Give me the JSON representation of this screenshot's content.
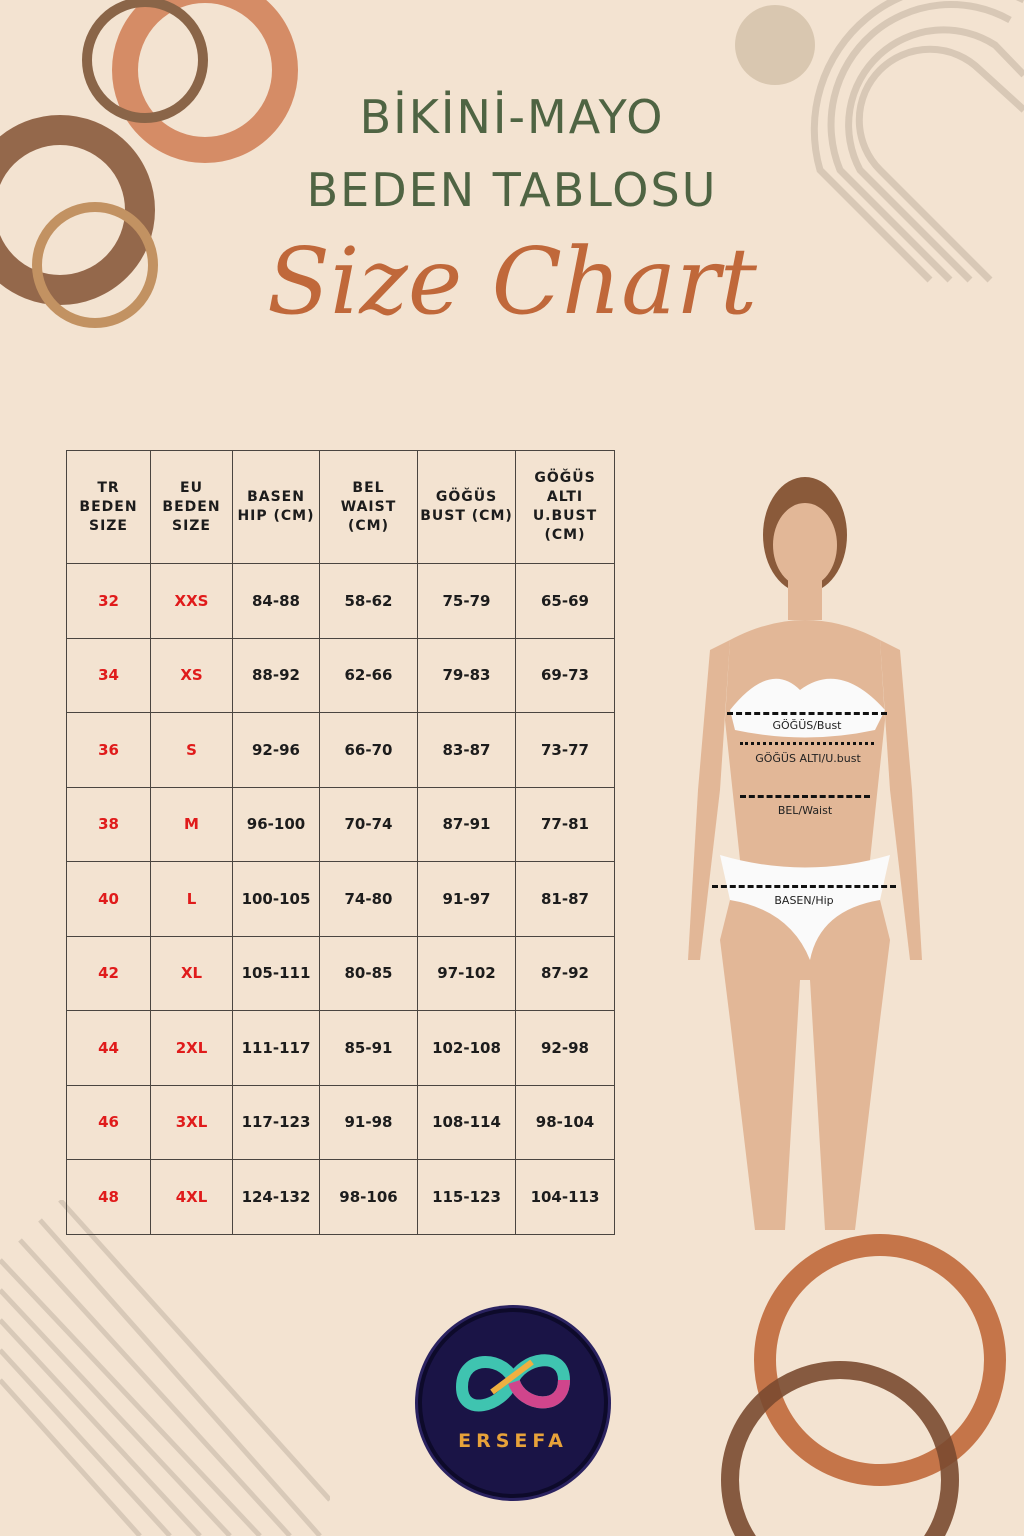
{
  "header": {
    "title_line1": "BİKİNİ-MAYO",
    "title_line2": "BEDEN TABLOSU",
    "script_title": "Size Chart"
  },
  "table": {
    "columns": [
      "TR BEDEN SIZE",
      "EU BEDEN SIZE",
      "BASEN HIP (CM)",
      "BEL WAIST (CM)",
      "GÖĞÜS BUST (CM)",
      "GÖĞÜS ALTI U.BUST (CM)"
    ],
    "rows": [
      [
        "32",
        "XXS",
        "84-88",
        "58-62",
        "75-79",
        "65-69"
      ],
      [
        "34",
        "XS",
        "88-92",
        "62-66",
        "79-83",
        "69-73"
      ],
      [
        "36",
        "S",
        "92-96",
        "66-70",
        "83-87",
        "73-77"
      ],
      [
        "38",
        "M",
        "96-100",
        "70-74",
        "87-91",
        "77-81"
      ],
      [
        "40",
        "L",
        "100-105",
        "74-80",
        "91-97",
        "81-87"
      ],
      [
        "42",
        "XL",
        "105-111",
        "80-85",
        "97-102",
        "87-92"
      ],
      [
        "44",
        "2XL",
        "111-117",
        "85-91",
        "102-108",
        "92-98"
      ],
      [
        "46",
        "3XL",
        "117-123",
        "91-98",
        "108-114",
        "98-104"
      ],
      [
        "48",
        "4XL",
        "124-132",
        "98-106",
        "115-123",
        "104-113"
      ]
    ]
  },
  "measurements": {
    "bust": "GÖĞÜS/Bust",
    "underbust": "GÖĞÜS ALTI/U.bust",
    "waist": "BEL/Waist",
    "hip": "BASEN/Hip"
  },
  "logo": {
    "text": "ERSEFA"
  },
  "colors": {
    "background": "#f3e3d1",
    "title": "#4f6443",
    "script": "#c0683a",
    "size_red": "#e01b1b"
  }
}
